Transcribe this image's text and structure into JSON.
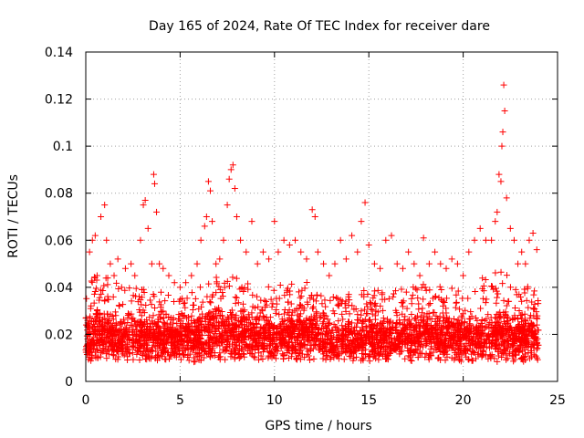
{
  "chart_data": {
    "type": "scatter",
    "title": "Day 165 of 2024, Rate Of TEC Index for receiver dare",
    "xlabel": "GPS time / hours",
    "ylabel": "ROTI / TECUs",
    "xlim": [
      0,
      25
    ],
    "ylim": [
      0,
      0.14
    ],
    "xticks": [
      0,
      5,
      10,
      15,
      20,
      25
    ],
    "xtick_labels": [
      "0",
      "5",
      "10",
      "15",
      "20",
      "25"
    ],
    "yticks": [
      0,
      0.02,
      0.04,
      0.06,
      0.08,
      0.1,
      0.12,
      0.14
    ],
    "ytick_labels": [
      "0",
      "0.02",
      "0.04",
      "0.06",
      "0.08",
      "0.1",
      "0.12",
      "0.14"
    ],
    "grid": true,
    "marker": "+",
    "color": "#ff0000",
    "series": [
      {
        "x": [
          0.1,
          0.2,
          0.35,
          0.5,
          0.6,
          0.8,
          1.0,
          1.1,
          1.3,
          1.5,
          1.7,
          1.9,
          2.1,
          2.4,
          2.6,
          2.9,
          3.05,
          3.15,
          3.3,
          3.5,
          3.6,
          3.65,
          3.75,
          3.9,
          4.1,
          4.4,
          4.7,
          5.0,
          5.3,
          5.6,
          5.9,
          6.1,
          6.3,
          6.4,
          6.5,
          6.6,
          6.7,
          6.9,
          7.1,
          7.3,
          7.5,
          7.6,
          7.7,
          7.8,
          7.9,
          8.0,
          8.2,
          8.5,
          8.8,
          9.1,
          9.4,
          9.7,
          10.0,
          10.2,
          10.5,
          10.8,
          11.1,
          11.4,
          11.7,
          12.0,
          12.15,
          12.3,
          12.6,
          12.9,
          13.2,
          13.5,
          13.8,
          14.1,
          14.4,
          14.6,
          14.8,
          15.0,
          15.3,
          15.6,
          15.9,
          16.2,
          16.5,
          16.8,
          17.1,
          17.4,
          17.7,
          17.9,
          18.2,
          18.5,
          18.8,
          19.1,
          19.4,
          19.7,
          20.0,
          20.3,
          20.6,
          20.9,
          21.2,
          21.5,
          21.7,
          21.8,
          21.9,
          22.0,
          22.05,
          22.1,
          22.15,
          22.2,
          22.3,
          22.5,
          22.7,
          22.9,
          23.1,
          23.3,
          23.5,
          23.7,
          23.9
        ],
        "y": [
          0.018,
          0.055,
          0.06,
          0.062,
          0.045,
          0.07,
          0.075,
          0.06,
          0.05,
          0.045,
          0.052,
          0.04,
          0.048,
          0.05,
          0.045,
          0.06,
          0.075,
          0.077,
          0.065,
          0.05,
          0.088,
          0.084,
          0.072,
          0.05,
          0.048,
          0.045,
          0.042,
          0.04,
          0.042,
          0.045,
          0.05,
          0.06,
          0.066,
          0.07,
          0.085,
          0.081,
          0.068,
          0.05,
          0.052,
          0.06,
          0.075,
          0.086,
          0.09,
          0.092,
          0.082,
          0.07,
          0.06,
          0.055,
          0.068,
          0.05,
          0.055,
          0.052,
          0.068,
          0.055,
          0.06,
          0.058,
          0.06,
          0.055,
          0.052,
          0.073,
          0.07,
          0.055,
          0.05,
          0.045,
          0.05,
          0.06,
          0.052,
          0.062,
          0.055,
          0.068,
          0.076,
          0.058,
          0.05,
          0.048,
          0.06,
          0.062,
          0.05,
          0.048,
          0.055,
          0.05,
          0.045,
          0.061,
          0.05,
          0.055,
          0.05,
          0.048,
          0.052,
          0.05,
          0.045,
          0.055,
          0.06,
          0.065,
          0.06,
          0.06,
          0.068,
          0.072,
          0.088,
          0.085,
          0.1,
          0.106,
          0.126,
          0.115,
          0.078,
          0.065,
          0.06,
          0.05,
          0.055,
          0.05,
          0.06,
          0.063,
          0.056
        ]
      }
    ],
    "band": {
      "description": "dense cloud of points",
      "x": [
        0.0,
        0.5,
        1.0,
        2.0,
        3.0,
        4.0,
        5.0,
        6.0,
        7.0,
        8.0,
        9.0,
        10.0,
        11.0,
        12.0,
        13.0,
        14.0,
        15.0,
        16.0,
        17.0,
        18.0,
        19.0,
        20.0,
        21.0,
        22.0,
        23.0,
        24.0
      ],
      "low": [
        0.008,
        0.008,
        0.009,
        0.009,
        0.009,
        0.009,
        0.009,
        0.008,
        0.009,
        0.009,
        0.009,
        0.009,
        0.009,
        0.009,
        0.009,
        0.009,
        0.008,
        0.009,
        0.008,
        0.009,
        0.009,
        0.008,
        0.009,
        0.008,
        0.008,
        0.009
      ],
      "high": [
        0.04,
        0.045,
        0.045,
        0.04,
        0.04,
        0.038,
        0.036,
        0.04,
        0.045,
        0.045,
        0.04,
        0.042,
        0.045,
        0.042,
        0.036,
        0.038,
        0.04,
        0.038,
        0.04,
        0.042,
        0.04,
        0.04,
        0.045,
        0.048,
        0.042,
        0.038
      ],
      "mean": [
        0.018,
        0.02,
        0.02,
        0.019,
        0.019,
        0.018,
        0.018,
        0.019,
        0.02,
        0.02,
        0.019,
        0.019,
        0.02,
        0.02,
        0.018,
        0.018,
        0.018,
        0.018,
        0.018,
        0.019,
        0.019,
        0.018,
        0.019,
        0.02,
        0.019,
        0.018
      ]
    }
  }
}
